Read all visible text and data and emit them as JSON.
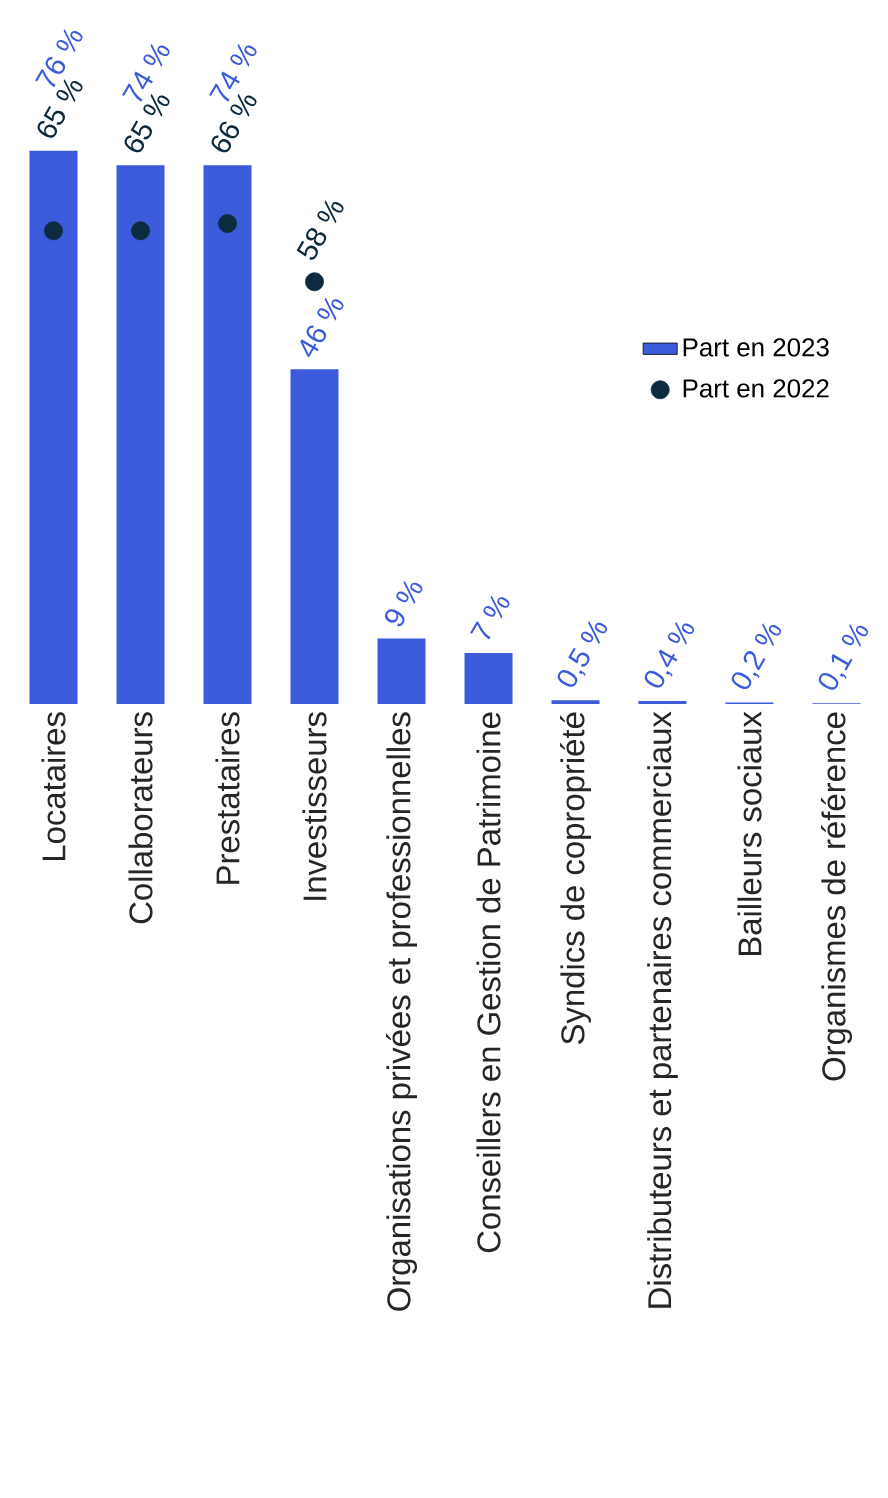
{
  "chart_data": {
    "type": "bar",
    "categories": [
      "Locataires",
      "Collaborateurs",
      "Prestataires",
      "Investisseurs",
      "Organisations privées et professionnelles",
      "Conseillers en Gestion de Patrimoine",
      "Syndics de copropriété",
      "Distributeurs et partenaires commerciaux",
      "Bailleurs sociaux",
      "Organismes de référence"
    ],
    "series": [
      {
        "name": "Part en 2023",
        "color": "#3b5bdb",
        "values": [
          76,
          74,
          74,
          46,
          9,
          7,
          0.5,
          0.4,
          0.2,
          0.1
        ],
        "value_labels": [
          "76 %",
          "74 %",
          "74 %",
          "46 %",
          "9 %",
          "7 %",
          "0,5 %",
          "0,4 %",
          "0,2 %",
          "0,1 %"
        ]
      },
      {
        "name": "Part en 2022",
        "type": "scatter",
        "marker": "circle",
        "color": "#0d2b3e",
        "values": [
          65,
          65,
          66,
          58,
          null,
          null,
          null,
          null,
          null,
          null
        ],
        "value_labels": [
          "65 %",
          "65 %",
          "66 %",
          "58 %",
          null,
          null,
          null,
          null,
          null,
          null
        ]
      }
    ],
    "legend": "right"
  }
}
